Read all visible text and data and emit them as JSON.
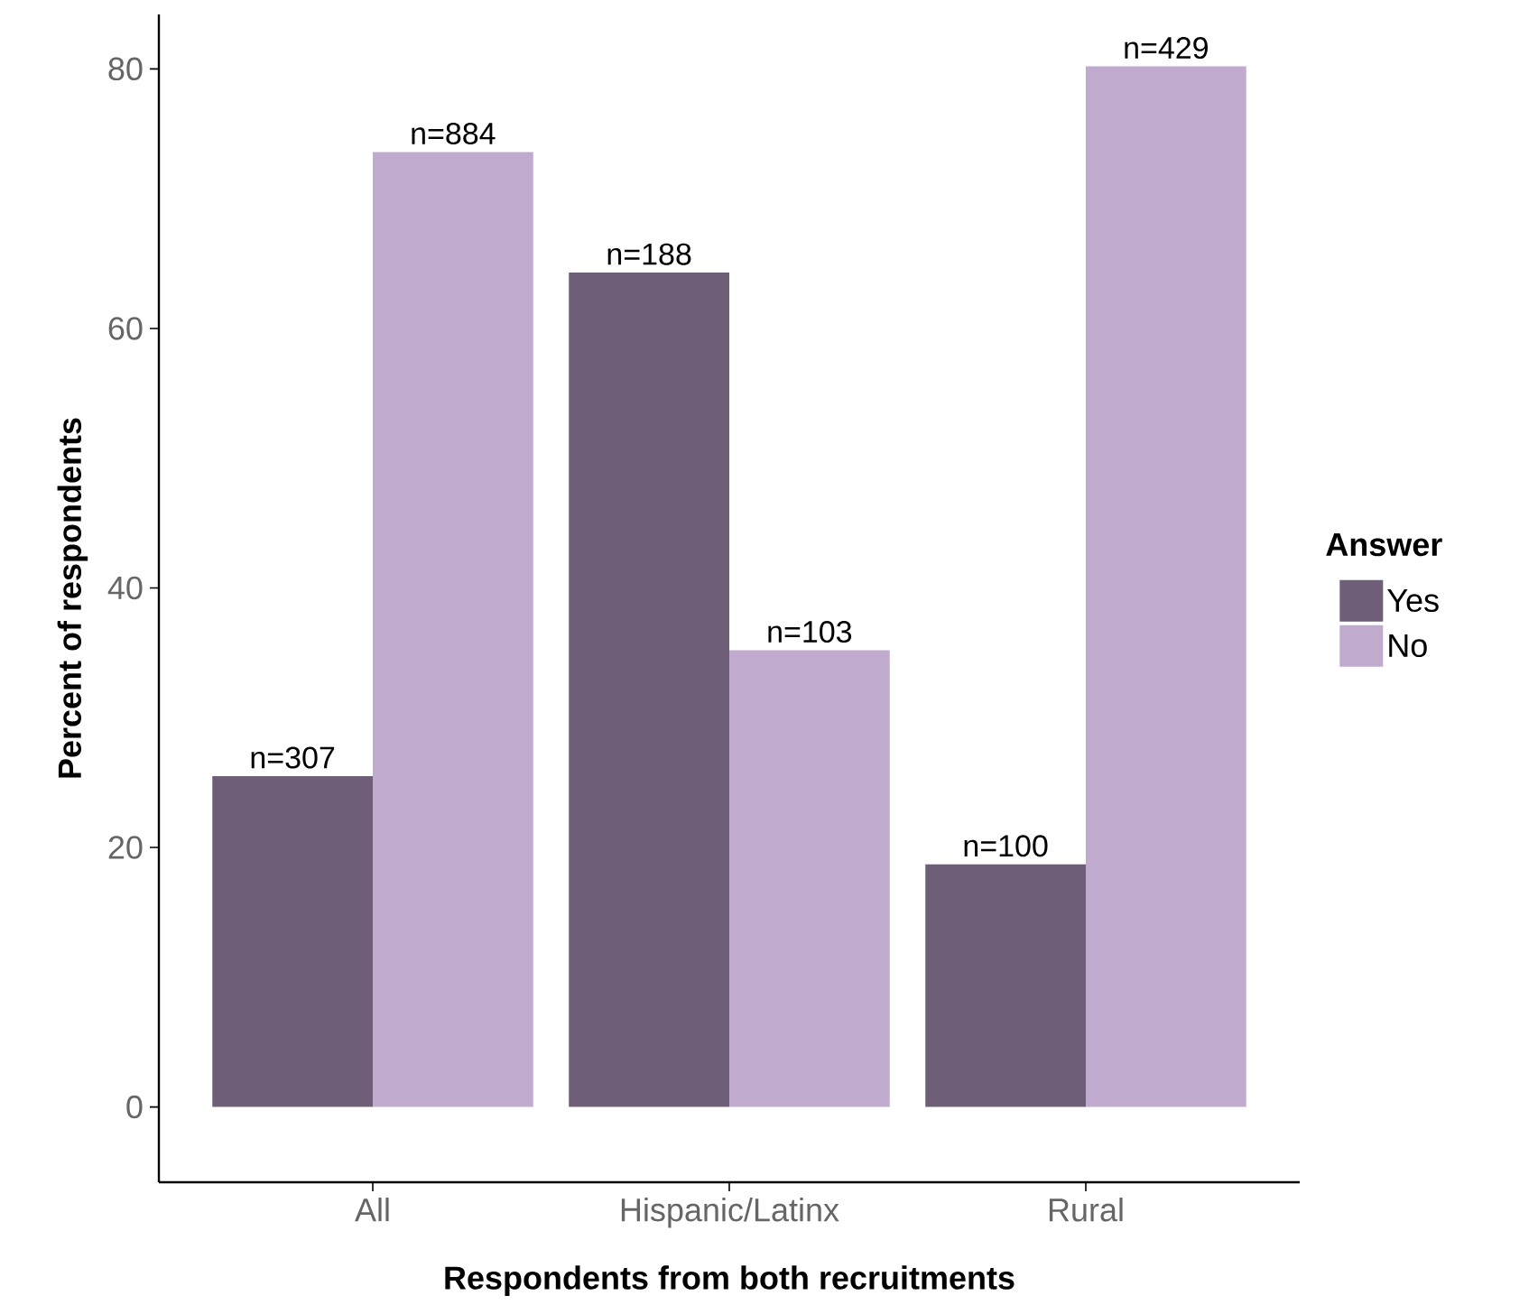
{
  "chart_data": {
    "type": "bar",
    "xlabel": "Respondents from both recruitments",
    "ylabel": "Percent of respondents",
    "legend_title": "Answer",
    "legend": "right",
    "grid": false,
    "categories": [
      "All",
      "Hispanic/Latinx",
      "Rural"
    ],
    "series": [
      {
        "name": "Yes",
        "color": "#6e5e78",
        "values": [
          25.5,
          64.3,
          18.7
        ]
      },
      {
        "name": "No",
        "color": "#c0abcf",
        "values": [
          73.6,
          35.2,
          80.2
        ]
      }
    ],
    "annotations": [
      {
        "text": "n=307",
        "x": "All",
        "y": 25.5
      },
      {
        "text": "n=884",
        "x": "All",
        "y": 73.6
      },
      {
        "text": "n=188",
        "x": "Hispanic/Latinx",
        "y": 64.3
      },
      {
        "text": "n=103",
        "x": "Hispanic/Latinx",
        "y": 35.2
      },
      {
        "text": "n=100",
        "x": "Rural",
        "y": 18.7
      },
      {
        "text": "n=429",
        "x": "Rural",
        "y": 80.2
      }
    ],
    "ylim": [
      -5.8,
      84.2
    ],
    "yticks": [
      0,
      20,
      40,
      60,
      80
    ]
  }
}
